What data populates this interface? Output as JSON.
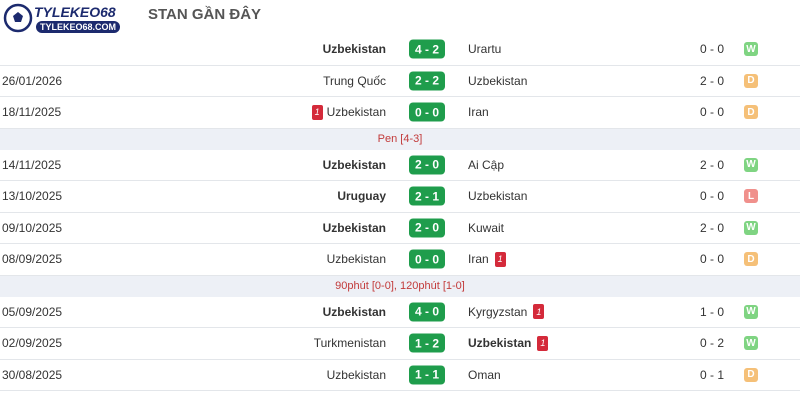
{
  "logo": {
    "name": "TYLEKEO68",
    "site": "TYLEKEO68.COM"
  },
  "header": {
    "title": "STAN GẦN ĐÂY"
  },
  "matches": [
    {
      "home": "Uzbekistan",
      "home_bold": true,
      "score": "4 - 2",
      "away": "Urartu",
      "half_time": "0 - 0",
      "result": "W"
    },
    {
      "date": "26/01/2026",
      "home": "Trung Quốc",
      "score": "2 - 2",
      "away": "Uzbekistan",
      "half_time": "2 - 0",
      "result": "D"
    },
    {
      "date": "18/11/2025",
      "home": "Uzbekistan",
      "home_card": "1",
      "score": "0 - 0",
      "away": "Iran",
      "half_time": "0 - 0",
      "result": "D",
      "note": "Pen [4-3]"
    },
    {
      "date": "14/11/2025",
      "home": "Uzbekistan",
      "home_bold": true,
      "score": "2 - 0",
      "away": "Ai Cập",
      "half_time": "2 - 0",
      "result": "W"
    },
    {
      "date": "13/10/2025",
      "home": "Uruguay",
      "home_bold": true,
      "score": "2 - 1",
      "away": "Uzbekistan",
      "half_time": "0 - 0",
      "result": "L"
    },
    {
      "date": "09/10/2025",
      "home": "Uzbekistan",
      "home_bold": true,
      "score": "2 - 0",
      "away": "Kuwait",
      "half_time": "2 - 0",
      "result": "W"
    },
    {
      "date": "08/09/2025",
      "home": "Uzbekistan",
      "score": "0 - 0",
      "away": "Iran",
      "away_card": "1",
      "half_time": "0 - 0",
      "result": "D",
      "note": "90phút [0-0], 120phút [1-0]"
    },
    {
      "date": "05/09/2025",
      "home": "Uzbekistan",
      "home_bold": true,
      "score": "4 - 0",
      "away": "Kyrgyzstan",
      "away_card": "1",
      "half_time": "1 - 0",
      "result": "W"
    },
    {
      "date": "02/09/2025",
      "home": "Turkmenistan",
      "score": "1 - 2",
      "away": "Uzbekistan",
      "away_bold": true,
      "away_card": "1",
      "half_time": "0 - 2",
      "result": "W"
    },
    {
      "date": "30/08/2025",
      "home": "Uzbekistan",
      "score": "1 - 1",
      "away": "Oman",
      "half_time": "0 - 1",
      "result": "D"
    }
  ]
}
